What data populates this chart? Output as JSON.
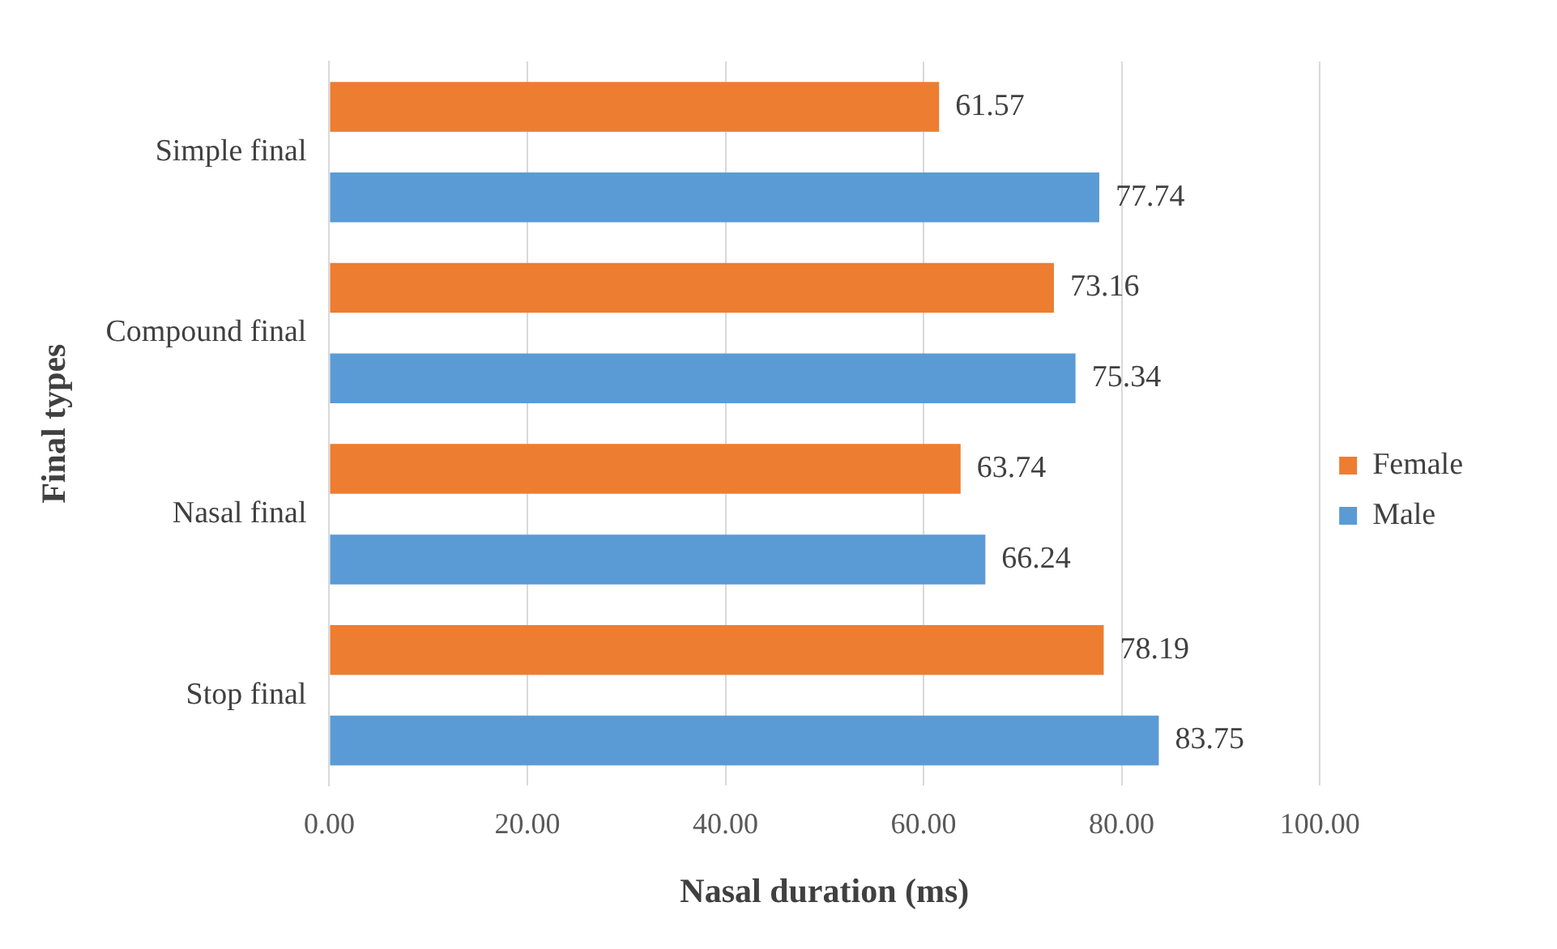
{
  "chart_data": {
    "type": "bar",
    "orientation": "horizontal",
    "xlabel": "Nasal duration (ms)",
    "ylabel": "Final types",
    "categories": [
      "Simple final",
      "Compound final",
      "Nasal final",
      "Stop final"
    ],
    "series": [
      {
        "name": "Female",
        "color": "#ed7d31",
        "values": [
          61.57,
          73.16,
          63.74,
          78.19
        ]
      },
      {
        "name": "Male",
        "color": "#5b9bd5",
        "values": [
          77.74,
          75.34,
          66.24,
          83.75
        ]
      }
    ],
    "xlim": [
      0,
      100
    ],
    "xticks": [
      {
        "value": 0,
        "label": "0.00"
      },
      {
        "value": 20,
        "label": "20.00"
      },
      {
        "value": 40,
        "label": "40.00"
      },
      {
        "value": 60,
        "label": "60.00"
      },
      {
        "value": 80,
        "label": "80.00"
      },
      {
        "value": 100,
        "label": "100.00"
      }
    ],
    "data_labels": true,
    "grid": "x",
    "legend": "right"
  }
}
